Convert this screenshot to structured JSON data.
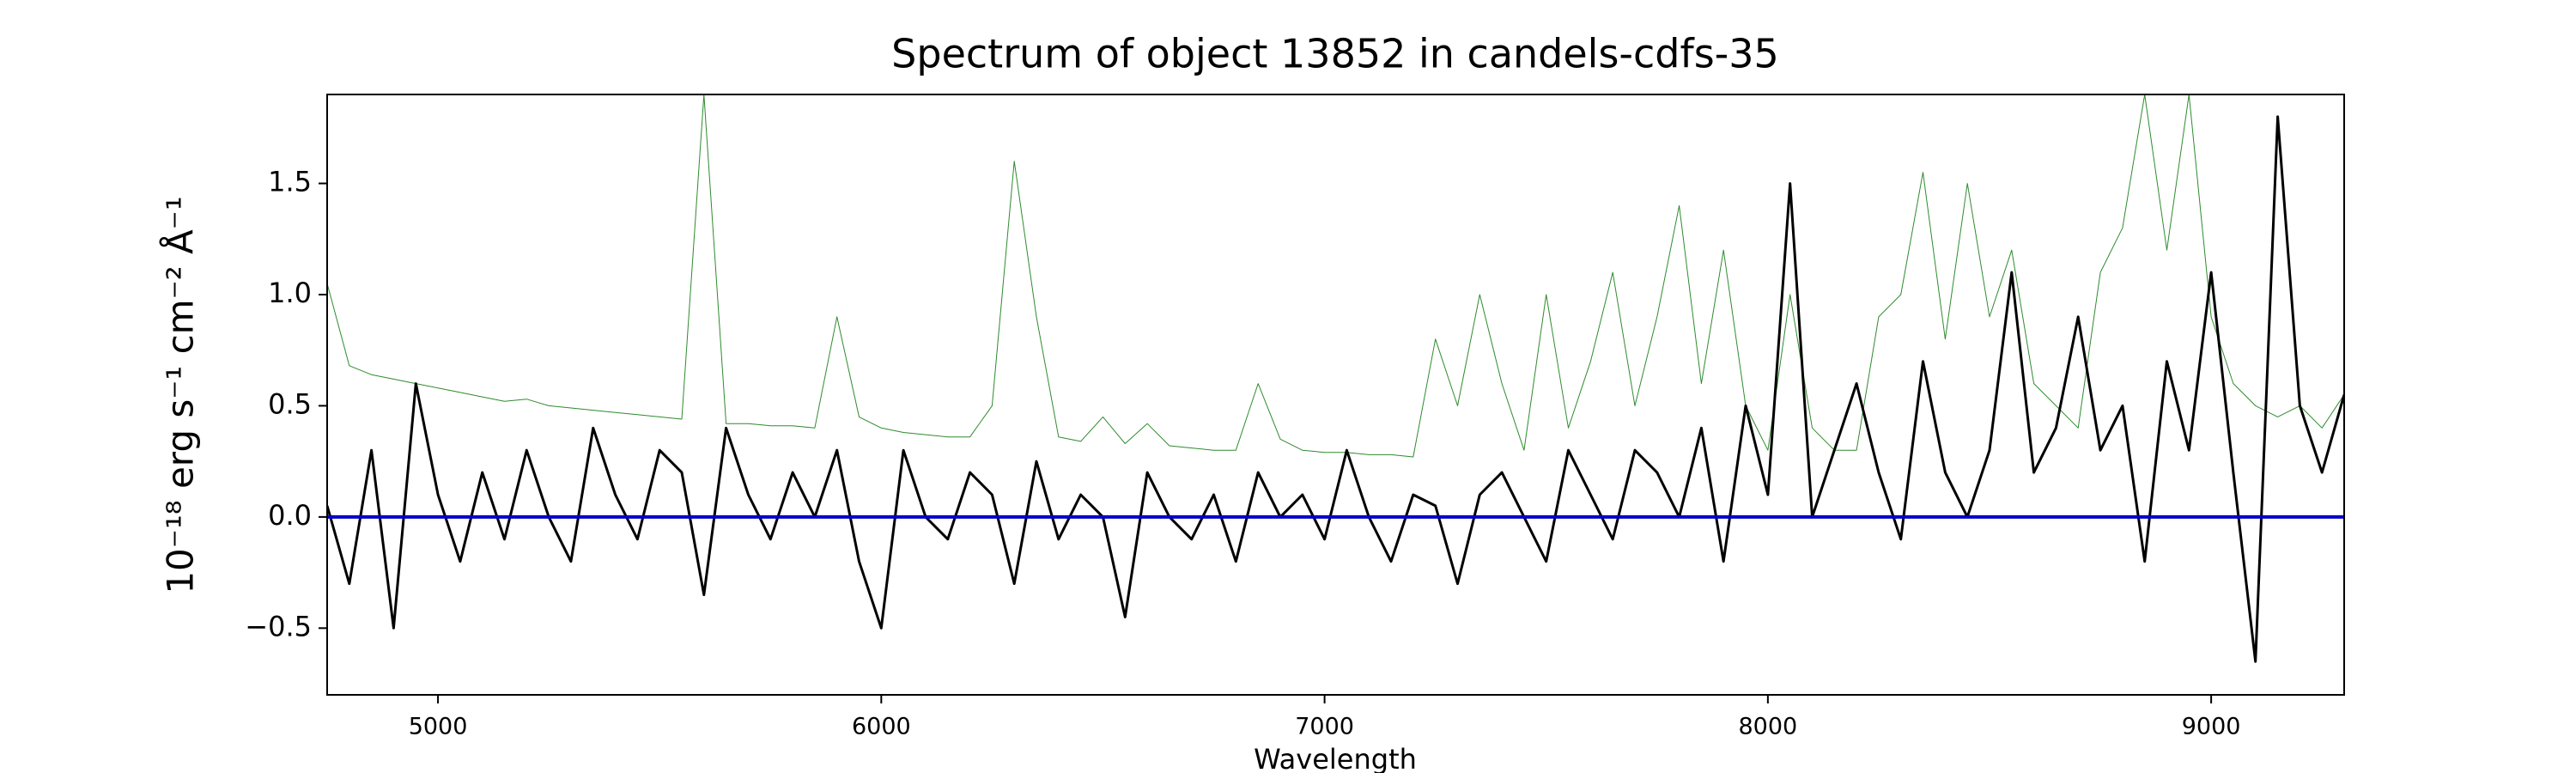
{
  "chart_data": {
    "type": "line",
    "title": "Spectrum of object 13852 in candels-cdfs-35",
    "xlabel": "Wavelength",
    "ylabel": "10⁻¹⁸ erg s⁻¹ cm⁻² Å⁻¹",
    "x": [
      4750,
      4800,
      4850,
      4900,
      4950,
      5000,
      5050,
      5100,
      5150,
      5200,
      5250,
      5300,
      5350,
      5400,
      5450,
      5500,
      5550,
      5600,
      5650,
      5700,
      5750,
      5800,
      5850,
      5900,
      5950,
      6000,
      6050,
      6100,
      6150,
      6200,
      6250,
      6300,
      6350,
      6400,
      6450,
      6500,
      6550,
      6600,
      6650,
      6700,
      6750,
      6800,
      6850,
      6900,
      6950,
      7000,
      7050,
      7100,
      7150,
      7200,
      7250,
      7300,
      7350,
      7400,
      7450,
      7500,
      7550,
      7600,
      7650,
      7700,
      7750,
      7800,
      7850,
      7900,
      7950,
      8000,
      8050,
      8100,
      8150,
      8200,
      8250,
      8300,
      8350,
      8400,
      8450,
      8500,
      8550,
      8600,
      8650,
      8700,
      8750,
      8800,
      8850,
      8900,
      8950,
      9000,
      9050,
      9100,
      9150,
      9200,
      9250,
      9300
    ],
    "series": [
      {
        "color": "#2e8b2e",
        "width": 1,
        "values": [
          1.05,
          0.68,
          0.64,
          0.62,
          0.6,
          0.58,
          0.56,
          0.54,
          0.52,
          0.53,
          0.5,
          0.49,
          0.48,
          0.47,
          0.46,
          0.45,
          0.44,
          1.9,
          0.42,
          0.42,
          0.41,
          0.41,
          0.4,
          0.9,
          0.45,
          0.4,
          0.38,
          0.37,
          0.36,
          0.36,
          0.5,
          1.6,
          0.9,
          0.36,
          0.34,
          0.45,
          0.33,
          0.42,
          0.32,
          0.31,
          0.3,
          0.3,
          0.6,
          0.35,
          0.3,
          0.29,
          0.29,
          0.28,
          0.28,
          0.27,
          0.8,
          0.5,
          1.0,
          0.6,
          0.3,
          1.0,
          0.4,
          0.7,
          1.1,
          0.5,
          0.9,
          1.4,
          0.6,
          1.2,
          0.5,
          0.3,
          1.0,
          0.4,
          0.3,
          0.3,
          0.9,
          1.0,
          1.55,
          0.8,
          1.5,
          0.9,
          1.2,
          0.6,
          0.5,
          0.4,
          1.1,
          1.3,
          1.9,
          1.2,
          1.9,
          0.9,
          0.6,
          0.5,
          0.45,
          0.5,
          0.4,
          0.55
        ]
      },
      {
        "color": "#000000",
        "width": 3,
        "values": [
          0.05,
          -0.3,
          0.3,
          -0.5,
          0.6,
          0.1,
          -0.2,
          0.2,
          -0.1,
          0.3,
          0.0,
          -0.2,
          0.4,
          0.1,
          -0.1,
          0.3,
          0.2,
          -0.35,
          0.4,
          0.1,
          -0.1,
          0.2,
          0.0,
          0.3,
          -0.2,
          -0.5,
          0.3,
          0.0,
          -0.1,
          0.2,
          0.1,
          -0.3,
          0.25,
          -0.1,
          0.1,
          0.0,
          -0.45,
          0.2,
          0.0,
          -0.1,
          0.1,
          -0.2,
          0.2,
          0.0,
          0.1,
          -0.1,
          0.3,
          0.0,
          -0.2,
          0.1,
          0.05,
          -0.3,
          0.1,
          0.2,
          0.0,
          -0.2,
          0.3,
          0.1,
          -0.1,
          0.3,
          0.2,
          0.0,
          0.4,
          -0.2,
          0.5,
          0.1,
          1.5,
          0.0,
          0.3,
          0.6,
          0.2,
          -0.1,
          0.7,
          0.2,
          0.0,
          0.3,
          1.1,
          0.2,
          0.4,
          0.9,
          0.3,
          0.5,
          -0.2,
          0.7,
          0.3,
          1.1,
          0.2,
          -0.65,
          1.8,
          0.5,
          0.2,
          0.55
        ]
      }
    ],
    "reference_line": {
      "y": 0,
      "color": "#0000cc"
    },
    "xlim": [
      4750,
      9300
    ],
    "ylim": [
      -0.8,
      1.9
    ],
    "xticks": [
      5000,
      6000,
      7000,
      8000,
      9000
    ],
    "yticks": [
      {
        "value": -0.5,
        "label": "−0.5"
      },
      {
        "value": 0,
        "label": "0.0"
      },
      0.5,
      {
        "value": 1,
        "label": "1.0"
      },
      1.5
    ]
  }
}
